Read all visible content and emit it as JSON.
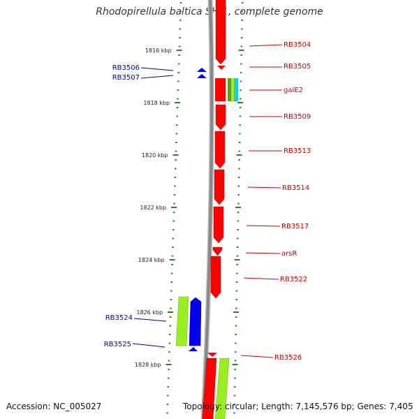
{
  "title": "Rhodopirellula baltica SH 1, complete genome",
  "accession": "Accession: NC_005027",
  "topology": "Topology: circular; Length: 7,145,576 bp; Genes: 7,405",
  "colors": {
    "forward_label": "#cc0000",
    "reverse_label": "#0000aa",
    "forward_gene": "#ff0000",
    "reverse_gene": "#0000ee",
    "rna_green": "#99ee22",
    "galE2_teal": "#22cccc",
    "galE2_olive": "#669922",
    "backbone": "#888888",
    "ticks": "#228822"
  },
  "scale_labels": [
    "1816 kbp",
    "1818 kbp",
    "1820 kbp",
    "1822 kbp",
    "1824 kbp",
    "1826 kbp",
    "1828 kbp"
  ],
  "genes": [
    {
      "label": "RB3504",
      "strand": "forward"
    },
    {
      "label": "RB3505",
      "strand": "forward"
    },
    {
      "label": "RB3506",
      "strand": "reverse"
    },
    {
      "label": "RB3507",
      "strand": "reverse"
    },
    {
      "label": "galE2",
      "strand": "forward"
    },
    {
      "label": "RB3509",
      "strand": "forward"
    },
    {
      "label": "RB3513",
      "strand": "forward"
    },
    {
      "label": "RB3514",
      "strand": "forward"
    },
    {
      "label": "RB3517",
      "strand": "forward"
    },
    {
      "label": "arsR",
      "strand": "forward"
    },
    {
      "label": "RB3522",
      "strand": "forward"
    },
    {
      "label": "RB3524",
      "strand": "reverse"
    },
    {
      "label": "RB3525",
      "strand": "reverse"
    },
    {
      "label": "RB3526",
      "strand": "forward"
    }
  ]
}
